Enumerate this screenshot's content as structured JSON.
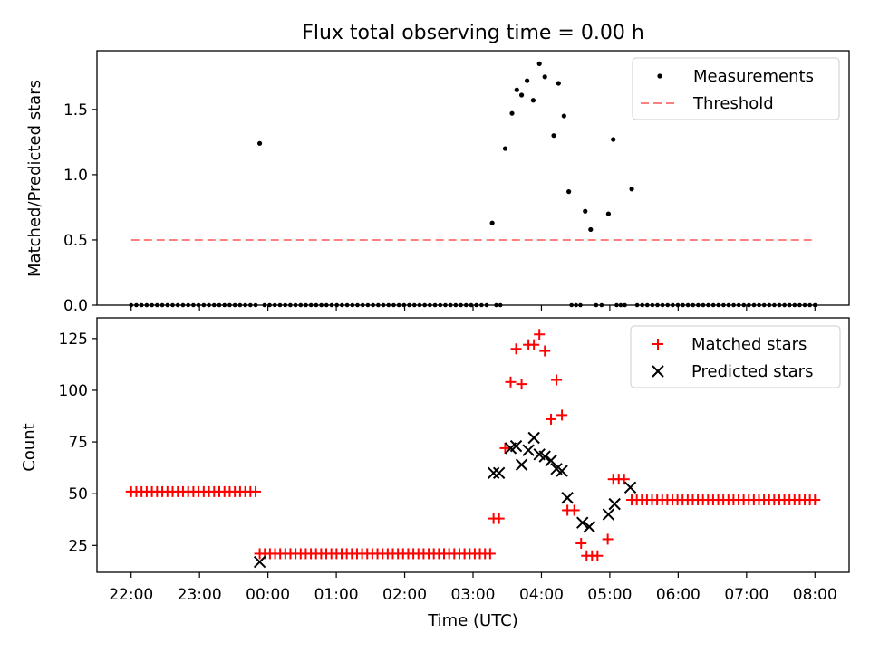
{
  "chart_data": [
    {
      "type": "scatter",
      "panel": "top",
      "title": "Flux total observing time = 0.00 h",
      "xlabel": "",
      "ylabel": "Matched/Predicted stars",
      "xlim": [
        -0.5,
        10.5
      ],
      "ylim": [
        0,
        1.95
      ],
      "x_is_hours_after_2200_utc": true,
      "yticks": [
        0.0,
        0.5,
        1.0,
        1.5
      ],
      "ytick_labels": [
        "0.0",
        "0.5",
        "1.0",
        "1.5"
      ],
      "threshold": {
        "value": 0.5,
        "x": [
          0.0,
          10.0
        ]
      },
      "legend": {
        "position": "top-right",
        "entries": [
          "Measurements",
          "Threshold"
        ]
      },
      "nonzero_measurements": [
        [
          1.88,
          1.24
        ],
        [
          5.28,
          0.63
        ],
        [
          5.47,
          1.2
        ],
        [
          5.57,
          1.47
        ],
        [
          5.64,
          1.65
        ],
        [
          5.71,
          1.61
        ],
        [
          5.79,
          1.72
        ],
        [
          5.88,
          1.57
        ],
        [
          5.97,
          1.85
        ],
        [
          6.05,
          1.75
        ],
        [
          6.18,
          1.3
        ],
        [
          6.25,
          1.7
        ],
        [
          6.33,
          1.45
        ],
        [
          6.4,
          0.87
        ],
        [
          6.64,
          0.72
        ],
        [
          6.72,
          0.58
        ],
        [
          6.98,
          0.7
        ],
        [
          7.05,
          1.27
        ],
        [
          7.32,
          0.89
        ]
      ],
      "zero_ranges": [
        [
          0.0,
          1.82
        ],
        [
          1.95,
          5.2
        ],
        [
          5.34,
          5.4
        ],
        [
          6.44,
          6.57
        ],
        [
          6.8,
          6.88
        ],
        [
          7.1,
          7.22
        ],
        [
          7.4,
          10.0
        ]
      ]
    },
    {
      "type": "scatter",
      "panel": "bottom",
      "xlabel": "Time (UTC)",
      "ylabel": "Count",
      "xlim": [
        -0.5,
        10.5
      ],
      "ylim": [
        12,
        135
      ],
      "xticks": [
        0,
        1,
        2,
        3,
        4,
        5,
        6,
        7,
        8,
        9,
        10
      ],
      "xtick_labels": [
        "22:00",
        "23:00",
        "00:00",
        "01:00",
        "02:00",
        "03:00",
        "04:00",
        "05:00",
        "06:00",
        "07:00",
        "08:00"
      ],
      "yticks": [
        25,
        50,
        75,
        100,
        125
      ],
      "ytick_labels": [
        "25",
        "50",
        "75",
        "100",
        "125"
      ],
      "legend": {
        "position": "top-right",
        "entries": [
          "Matched stars",
          "Predicted stars"
        ]
      },
      "matched_stars": {
        "constant_runs": [
          {
            "value": 51,
            "from": 0.0,
            "to": 1.82
          },
          {
            "value": 21,
            "from": 1.88,
            "to": 5.25
          },
          {
            "value": 47,
            "from": 7.32,
            "to": 10.0
          }
        ],
        "points": [
          [
            5.3,
            38
          ],
          [
            5.38,
            38
          ],
          [
            5.47,
            72
          ],
          [
            5.55,
            104
          ],
          [
            5.63,
            120
          ],
          [
            5.71,
            103
          ],
          [
            5.81,
            122
          ],
          [
            5.89,
            122
          ],
          [
            5.97,
            127
          ],
          [
            6.05,
            119
          ],
          [
            6.14,
            86
          ],
          [
            6.22,
            105
          ],
          [
            6.3,
            88
          ],
          [
            6.38,
            42
          ],
          [
            6.48,
            42
          ],
          [
            6.58,
            26
          ],
          [
            6.66,
            20
          ],
          [
            6.74,
            20
          ],
          [
            6.82,
            20
          ],
          [
            6.97,
            28
          ],
          [
            7.05,
            57
          ],
          [
            7.13,
            57
          ],
          [
            7.21,
            57
          ]
        ]
      },
      "predicted_stars": [
        [
          1.88,
          17
        ],
        [
          5.3,
          60
        ],
        [
          5.38,
          60
        ],
        [
          5.55,
          72
        ],
        [
          5.63,
          73
        ],
        [
          5.71,
          64
        ],
        [
          5.81,
          71
        ],
        [
          5.89,
          77
        ],
        [
          5.97,
          69
        ],
        [
          6.05,
          68
        ],
        [
          6.14,
          66
        ],
        [
          6.22,
          62
        ],
        [
          6.3,
          61
        ],
        [
          6.38,
          48
        ],
        [
          6.6,
          36
        ],
        [
          6.7,
          34
        ],
        [
          6.98,
          40
        ],
        [
          7.07,
          45
        ],
        [
          7.3,
          53
        ]
      ],
      "colors": {
        "matched": "#ff0000",
        "predicted": "#000000"
      }
    }
  ],
  "colors": {
    "threshold": "#ff8080",
    "axes": "#000000",
    "points": "#000000"
  }
}
